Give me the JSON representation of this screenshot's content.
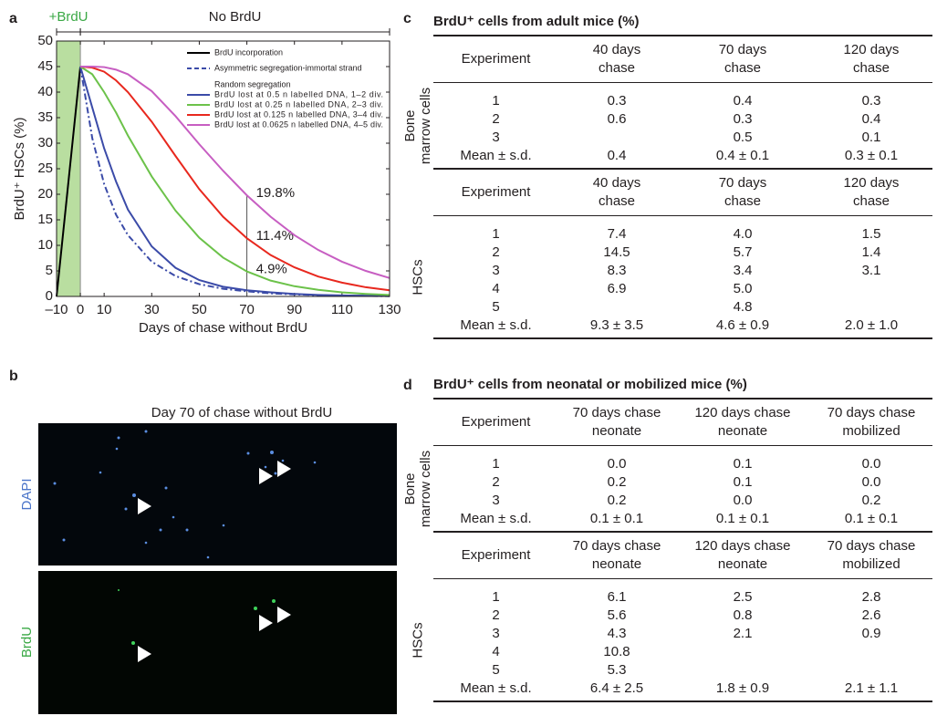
{
  "panel_labels": [
    "a",
    "b",
    "c",
    "d"
  ],
  "chart_data": {
    "type": "line",
    "xlabel": "Days of chase without BrdU",
    "ylabel": "BrdU⁺ HSCs (%)",
    "xlim": [
      -10,
      130
    ],
    "xticks": [
      {
        "value": -10,
        "label": "–10"
      },
      0,
      10,
      30,
      50,
      70,
      90,
      110,
      130
    ],
    "ylim": [
      0,
      50
    ],
    "yticks": [
      0,
      5,
      10,
      15,
      20,
      25,
      30,
      35,
      40,
      45,
      50
    ],
    "phases": [
      {
        "label": "+BrdU",
        "range": [
          -10,
          0
        ],
        "color": "#3aa845",
        "shade": "#b9dea0"
      },
      {
        "label": "No BrdU",
        "range": [
          0,
          130
        ],
        "color": "#231f20"
      }
    ],
    "annotation_x": 70,
    "annotations": [
      {
        "value": 19.8,
        "label": "19.8%"
      },
      {
        "value": 11.4,
        "label": "11.4%"
      },
      {
        "value": 4.9,
        "label": "4.9%"
      }
    ],
    "series": [
      {
        "name": "BrdU incorporation",
        "color": "#000000",
        "x": [
          -10,
          0
        ],
        "values": [
          0,
          45
        ]
      },
      {
        "name": "Asymmetric segregation-immortal strand",
        "color": "#3b4ba8",
        "dashed": true,
        "x": [
          0,
          5,
          10,
          15,
          20,
          30,
          40,
          50,
          60,
          70,
          80,
          90,
          100,
          110,
          120,
          130
        ],
        "values": [
          45,
          31,
          22,
          16,
          12,
          6.8,
          4,
          2.4,
          1.5,
          1,
          0.6,
          0.4,
          0.25,
          0.15,
          0.1,
          0.05
        ]
      },
      {
        "name": "BrdU lost at 0.5 n labelled DNA, 1–2 div.",
        "color": "#3b4ba8",
        "legend_group": "Random segregation",
        "x": [
          0,
          5,
          10,
          15,
          20,
          30,
          40,
          50,
          60,
          70,
          80,
          90,
          100,
          110,
          120,
          130
        ],
        "values": [
          45,
          37,
          29,
          22.5,
          17,
          9.8,
          5.6,
          3.2,
          1.9,
          1.2,
          0.8,
          0.5,
          0.3,
          0.2,
          0.15,
          0.1
        ]
      },
      {
        "name": "BrdU lost at 0.25 n labelled DNA, 2–3 div.",
        "color": "#6cc24a",
        "legend_group": "Random segregation",
        "x": [
          0,
          5,
          10,
          15,
          20,
          30,
          40,
          50,
          60,
          70,
          80,
          90,
          100,
          110,
          120,
          130
        ],
        "values": [
          45,
          43.5,
          40,
          36,
          31.5,
          23.5,
          16.8,
          11.5,
          7.6,
          4.9,
          3.1,
          2,
          1.3,
          0.8,
          0.5,
          0.3
        ]
      },
      {
        "name": "BrdU lost at 0.125 n labelled DNA, 3–4 div.",
        "color": "#e8281e",
        "legend_group": "Random segregation",
        "x": [
          0,
          5,
          10,
          15,
          20,
          30,
          40,
          50,
          60,
          70,
          80,
          90,
          100,
          110,
          120,
          130
        ],
        "values": [
          45,
          44.8,
          44,
          42.3,
          40,
          34.2,
          27.5,
          21,
          15.6,
          11.4,
          8.1,
          5.7,
          3.9,
          2.7,
          1.8,
          1.2
        ]
      },
      {
        "name": "BrdU lost at 0.0625 n labelled DNA, 4–5 div.",
        "color": "#c75ec2",
        "legend_group": "Random segregation",
        "x": [
          0,
          5,
          10,
          15,
          20,
          30,
          40,
          50,
          60,
          70,
          80,
          90,
          100,
          110,
          120,
          130
        ],
        "values": [
          45,
          45,
          44.9,
          44.4,
          43.5,
          40.2,
          35.3,
          29.8,
          24.6,
          19.8,
          15.6,
          12,
          9.1,
          6.8,
          5,
          3.6
        ]
      }
    ]
  },
  "panel_b": {
    "title": "Day 70 of chase without BrdU",
    "channels": [
      {
        "label": "DAPI",
        "color": "#4a74c9"
      },
      {
        "label": "BrdU",
        "color": "#3aa845"
      }
    ]
  },
  "table_c": {
    "title": "BrdU⁺ cells from adult mice (%)",
    "groups": [
      {
        "label": [
          "Bone",
          "marrow cells"
        ],
        "header": [
          [
            "Experiment"
          ],
          [
            "40 days",
            "chase"
          ],
          [
            "70 days",
            "chase"
          ],
          [
            "120 days",
            "chase"
          ]
        ],
        "rows": [
          [
            "1",
            "0.3",
            "0.4",
            "0.3"
          ],
          [
            "2",
            "0.6",
            "0.3",
            "0.4"
          ],
          [
            "3",
            null,
            "0.5",
            "0.1"
          ],
          [
            "Mean ± s.d.",
            "0.4",
            "0.4 ± 0.1",
            "0.3 ± 0.1"
          ]
        ]
      },
      {
        "label": [
          "HSCs"
        ],
        "header": [
          [
            "Experiment"
          ],
          [
            "40 days",
            "chase"
          ],
          [
            "70 days",
            "chase"
          ],
          [
            "120 days",
            "chase"
          ]
        ],
        "rows": [
          [
            "1",
            "7.4",
            "4.0",
            "1.5"
          ],
          [
            "2",
            "14.5",
            "5.7",
            "1.4"
          ],
          [
            "3",
            "8.3",
            "3.4",
            "3.1"
          ],
          [
            "4",
            "6.9",
            "5.0",
            null
          ],
          [
            "5",
            null,
            "4.8",
            null
          ],
          [
            "Mean ± s.d.",
            "9.3 ± 3.5",
            "4.6 ± 0.9",
            "2.0 ± 1.0"
          ]
        ]
      }
    ]
  },
  "table_d": {
    "title": "BrdU⁺ cells from neonatal or mobilized mice (%)",
    "groups": [
      {
        "label": [
          "Bone",
          "marrow cells"
        ],
        "header": [
          [
            "Experiment"
          ],
          [
            "70 days chase",
            "neonate"
          ],
          [
            "120 days chase",
            "neonate"
          ],
          [
            "70 days chase",
            "mobilized"
          ]
        ],
        "rows": [
          [
            "1",
            "0.0",
            "0.1",
            "0.0"
          ],
          [
            "2",
            "0.2",
            "0.1",
            "0.0"
          ],
          [
            "3",
            "0.2",
            "0.0",
            "0.2"
          ],
          [
            "Mean ± s.d.",
            "0.1 ± 0.1",
            "0.1 ± 0.1",
            "0.1 ± 0.1"
          ]
        ]
      },
      {
        "label": [
          "HSCs"
        ],
        "header": [
          [
            "Experiment"
          ],
          [
            "70 days chase",
            "neonate"
          ],
          [
            "120 days chase",
            "neonate"
          ],
          [
            "70 days chase",
            "mobilized"
          ]
        ],
        "rows": [
          [
            "1",
            "6.1",
            "2.5",
            "2.8"
          ],
          [
            "2",
            "5.6",
            "0.8",
            "2.6"
          ],
          [
            "3",
            "4.3",
            "2.1",
            "0.9"
          ],
          [
            "4",
            "10.8",
            null,
            null
          ],
          [
            "5",
            "5.3",
            null,
            null
          ],
          [
            "Mean ± s.d.",
            "6.4 ± 2.5",
            "1.8 ± 0.9",
            "2.1 ± 1.1"
          ]
        ]
      }
    ]
  }
}
